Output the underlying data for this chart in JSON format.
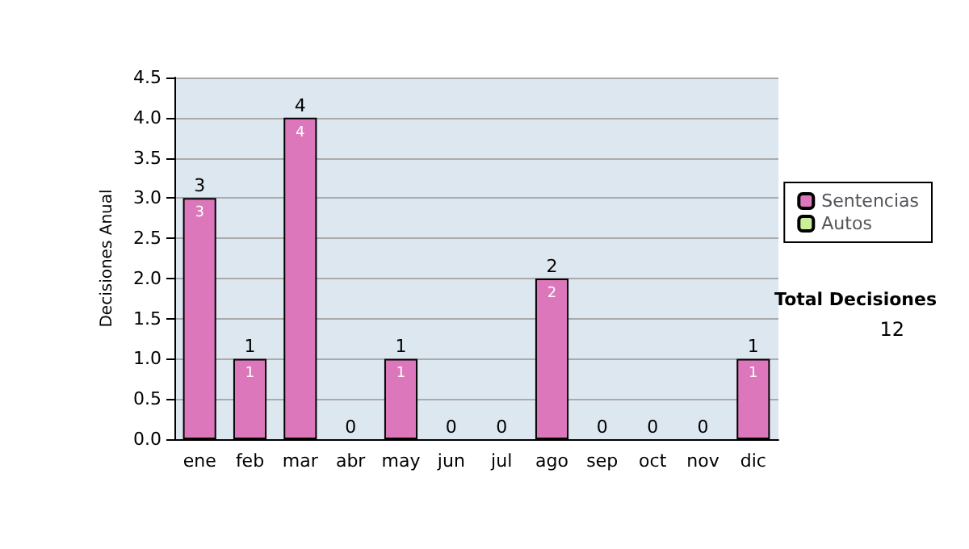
{
  "chart_data": {
    "type": "bar",
    "stacked": true,
    "ylabel": "Decisiones Anual",
    "categories": [
      "ene",
      "feb",
      "mar",
      "abr",
      "may",
      "jun",
      "jul",
      "ago",
      "sep",
      "oct",
      "nov",
      "dic"
    ],
    "series": [
      {
        "name": "Sentencias",
        "color": "#dd77bb",
        "values": [
          3,
          1,
          4,
          0,
          1,
          0,
          0,
          2,
          0,
          0,
          0,
          1
        ],
        "value_labels": [
          "3",
          "1",
          "4",
          null,
          "1",
          null,
          null,
          "2",
          null,
          null,
          null,
          "1"
        ]
      },
      {
        "name": "Autos",
        "color": "#ccee99",
        "values": [
          0,
          0,
          0,
          0,
          0,
          0,
          0,
          0,
          0,
          0,
          0,
          0
        ]
      }
    ],
    "totals": [
      "3",
      "1",
      "4",
      "0",
      "1",
      "0",
      "0",
      "2",
      "0",
      "0",
      "0",
      "1"
    ],
    "ylim": [
      0,
      4.5
    ],
    "yticks": [
      {
        "value": 0,
        "label": "0.0"
      },
      {
        "value": 0.5,
        "label": "0.5"
      },
      {
        "value": 1,
        "label": "1.0"
      },
      {
        "value": 1.5,
        "label": "1.5"
      },
      {
        "value": 2,
        "label": "2.0"
      },
      {
        "value": 2.5,
        "label": "2.5"
      },
      {
        "value": 3,
        "label": "3.0"
      },
      {
        "value": 3.5,
        "label": "3.5"
      },
      {
        "value": 4,
        "label": "4.0"
      },
      {
        "value": 4.5,
        "label": "4.5"
      }
    ],
    "grid": "y",
    "legend": "right",
    "annotations": [
      "Total Decisiones",
      "12"
    ]
  }
}
